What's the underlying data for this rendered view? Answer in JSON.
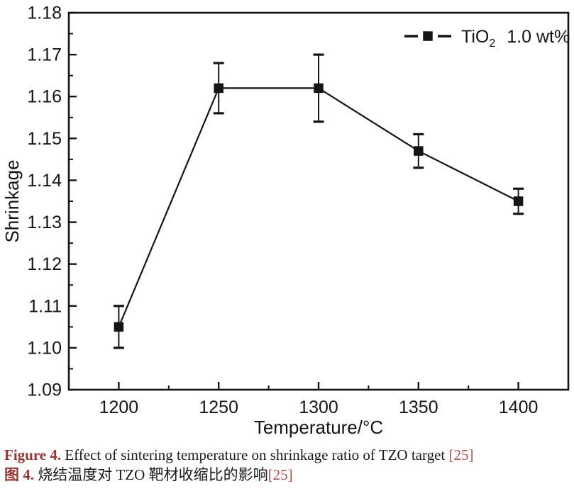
{
  "chart_data": {
    "type": "line",
    "title": "",
    "xlabel": "Temperature/°C",
    "ylabel": "Shrinkage",
    "xlim": [
      1175,
      1425
    ],
    "ylim": [
      1.09,
      1.18
    ],
    "x_major_ticks": [
      1200,
      1250,
      1300,
      1350,
      1400
    ],
    "x_minor_step": 25,
    "y_major_step": 0.01,
    "y_minor_step": 0.005,
    "y_tick_decimals": 2,
    "grid": false,
    "legend_position": "top-right",
    "series": [
      {
        "name": "TiO2 1.0 wt%",
        "marker": "filled-square",
        "color": "#141414",
        "x": [
          1200,
          1250,
          1300,
          1350,
          1400
        ],
        "y": [
          1.105,
          1.162,
          1.162,
          1.147,
          1.135
        ],
        "y_err": [
          0.005,
          0.006,
          0.008,
          0.004,
          0.003
        ]
      }
    ],
    "legend": {
      "base": "TiO",
      "subscript": "2",
      "suffix": "1.0 wt%"
    }
  },
  "caption": {
    "en_label": "Figure 4.",
    "en_text": " Effect of sintering temperature on shrinkage ratio of TZO target ",
    "en_ref": "[25]",
    "zh_label": "图 4.",
    "zh_text": " 烧结温度对 TZO 靶材收缩比的影响",
    "zh_ref": "[25]"
  },
  "colors": {
    "ink": "#141414",
    "caption_label": "#943634",
    "caption_ref": "#b05450"
  }
}
